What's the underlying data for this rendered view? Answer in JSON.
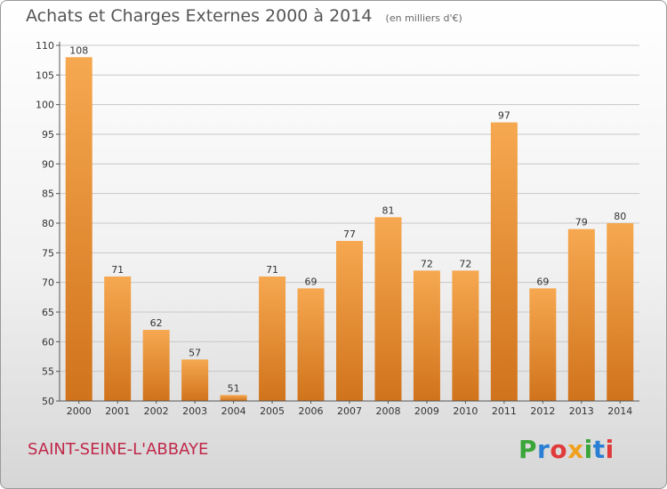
{
  "title": "Achats et Charges Externes 2000 à 2014",
  "unit": "(en milliers d'€)",
  "commune": "SAINT-SEINE-L'ABBAYE",
  "logo": {
    "text": "Proxiti",
    "colors": [
      "#3aa63a",
      "#2a7fd4",
      "#e03a3a",
      "#f0a020",
      "#3aa63a",
      "#2a7fd4",
      "#e03a3a"
    ]
  },
  "colors": {
    "bar_light": "#f6a850",
    "bar_dark": "#d0731c",
    "grid": "#c8c8c8",
    "commune": "#c0284a"
  },
  "chart_data": {
    "type": "bar",
    "categories": [
      "2000",
      "2001",
      "2002",
      "2003",
      "2004",
      "2005",
      "2006",
      "2007",
      "2008",
      "2009",
      "2010",
      "2011",
      "2012",
      "2013",
      "2014"
    ],
    "values": [
      108,
      71,
      62,
      57,
      51,
      71,
      69,
      77,
      81,
      72,
      72,
      97,
      69,
      79,
      80
    ],
    "data_labels": [
      "108",
      "71",
      "62",
      "57",
      "51",
      "71",
      "69",
      "77",
      "81",
      "72",
      "72",
      "97",
      "69",
      "79",
      "80"
    ],
    "ylim": [
      50,
      110
    ],
    "yticks": [
      50,
      55,
      60,
      65,
      70,
      75,
      80,
      85,
      90,
      95,
      100,
      105,
      110
    ],
    "ytick_labels": [
      "50",
      "55",
      "60",
      "65",
      "70",
      "75",
      "80",
      "85",
      "90",
      "95",
      "100",
      "105",
      "110"
    ],
    "grid": true,
    "xlabel": "",
    "ylabel": ""
  }
}
